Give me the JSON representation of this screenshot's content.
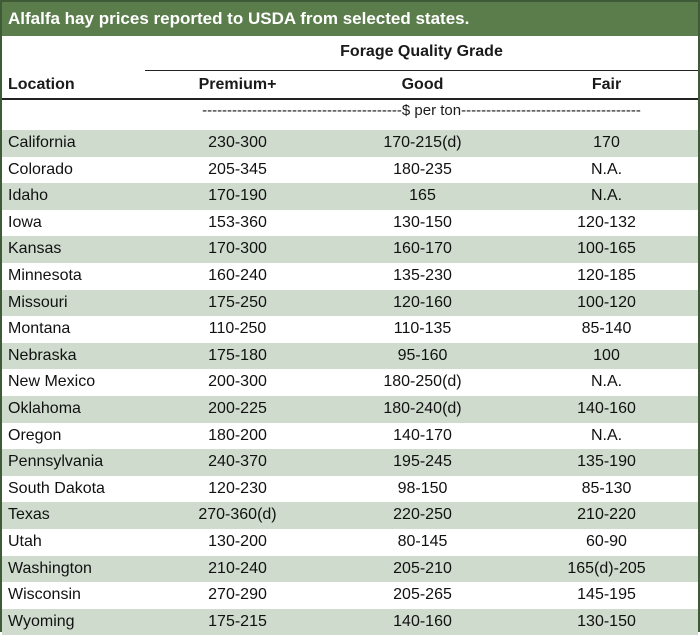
{
  "title": "Alfalfa hay prices reported to USDA from selected states.",
  "table": {
    "group_header": "Forage Quality Grade",
    "location_header": "Location",
    "columns": [
      "Premium+",
      "Good",
      "Fair"
    ],
    "units": "----------------------------------------$ per ton------------------------------------",
    "rows": [
      {
        "location": "California",
        "premium": "230-300",
        "good": "170-215(d)",
        "fair": "170"
      },
      {
        "location": "Colorado",
        "premium": "205-345",
        "good": "180-235",
        "fair": "N.A."
      },
      {
        "location": "Idaho",
        "premium": "170-190",
        "good": "165",
        "fair": "N.A."
      },
      {
        "location": "Iowa",
        "premium": "153-360",
        "good": "130-150",
        "fair": "120-132"
      },
      {
        "location": "Kansas",
        "premium": "170-300",
        "good": "160-170",
        "fair": "100-165"
      },
      {
        "location": "Minnesota",
        "premium": "160-240",
        "good": "135-230",
        "fair": "120-185"
      },
      {
        "location": "Missouri",
        "premium": "175-250",
        "good": "120-160",
        "fair": "100-120"
      },
      {
        "location": "Montana",
        "premium": "110-250",
        "good": "110-135",
        "fair": "85-140"
      },
      {
        "location": "Nebraska",
        "premium": "175-180",
        "good": "95-160",
        "fair": "100"
      },
      {
        "location": "New Mexico",
        "premium": "200-300",
        "good": "180-250(d)",
        "fair": "N.A."
      },
      {
        "location": "Oklahoma",
        "premium": "200-225",
        "good": "180-240(d)",
        "fair": "140-160"
      },
      {
        "location": "Oregon",
        "premium": "180-200",
        "good": "140-170",
        "fair": "N.A."
      },
      {
        "location": "Pennsylvania",
        "premium": "240-370",
        "good": "195-245",
        "fair": "135-190"
      },
      {
        "location": "South Dakota",
        "premium": "120-230",
        "good": "98-150",
        "fair": "85-130"
      },
      {
        "location": "Texas",
        "premium": "270-360(d)",
        "good": "220-250",
        "fair": "210-220"
      },
      {
        "location": "Utah",
        "premium": "130-200",
        "good": "80-145",
        "fair": "60-90"
      },
      {
        "location": "Washington",
        "premium": "210-240",
        "good": "205-210",
        "fair": "165(d)-205"
      },
      {
        "location": "Wisconsin",
        "premium": "270-290",
        "good": "205-265",
        "fair": "145-195"
      },
      {
        "location": "Wyoming",
        "premium": "175-215",
        "good": "140-160",
        "fair": "130-150"
      }
    ]
  },
  "colors": {
    "title_bg": "#5b7d4c",
    "stripe": "#cfdccd",
    "border": "#3f5a37"
  }
}
